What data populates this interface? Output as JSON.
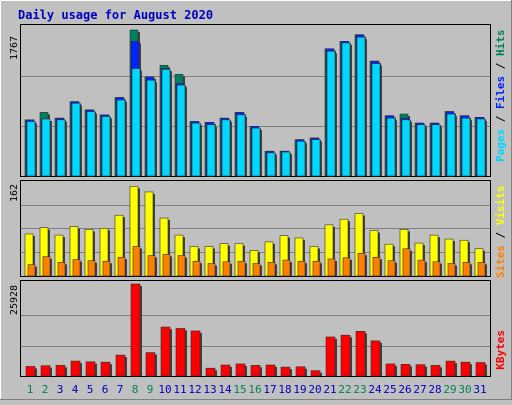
{
  "colors": {
    "background": "#c0c0c0",
    "plot_background": "#c0c0c0",
    "gridline": "#808080",
    "hits": "#00805c",
    "files": "#0024ff",
    "pages": "#00d8ff",
    "visits": "#ffff00",
    "sites": "#ff8000",
    "kbytes": "#ff0000",
    "title": "#0000c0",
    "weekend_label": "#00805c",
    "weekday_label": "#0000c0"
  },
  "chart_data": [
    {
      "type": "bar",
      "title": "Daily usage for August 2020",
      "ylabel": "Pages / Files / Hits",
      "ylim": [
        0,
        1767
      ],
      "y_tick_labels": [
        "1767"
      ],
      "grid": true,
      "categories": [
        "1",
        "2",
        "3",
        "4",
        "5",
        "6",
        "7",
        "8",
        "9",
        "10",
        "11",
        "12",
        "13",
        "14",
        "15",
        "16",
        "17",
        "18",
        "19",
        "20",
        "21",
        "22",
        "23",
        "24",
        "25",
        "26",
        "27",
        "28",
        "29",
        "30",
        "31"
      ],
      "series": [
        {
          "name": "Hits",
          "values": [
            680,
            770,
            700,
            900,
            800,
            740,
            950,
            1767,
            1200,
            1340,
            1230,
            660,
            650,
            700,
            770,
            600,
            300,
            300,
            440,
            460,
            1540,
            1630,
            1710,
            1390,
            730,
            750,
            640,
            640,
            780,
            730,
            710
          ]
        },
        {
          "name": "Files",
          "values": [
            680,
            690,
            700,
            900,
            800,
            740,
            950,
            1630,
            1200,
            1300,
            1120,
            660,
            650,
            700,
            770,
            600,
            300,
            300,
            440,
            460,
            1540,
            1630,
            1710,
            1390,
            730,
            700,
            640,
            640,
            780,
            730,
            710
          ]
        },
        {
          "name": "Pages",
          "values": [
            660,
            690,
            680,
            880,
            780,
            720,
            920,
            1300,
            1160,
            1290,
            1100,
            640,
            620,
            680,
            740,
            580,
            280,
            290,
            420,
            440,
            1510,
            1610,
            1680,
            1360,
            700,
            680,
            620,
            620,
            750,
            700,
            690
          ]
        }
      ]
    },
    {
      "type": "bar",
      "ylabel": "Sites / Visits",
      "ylim": [
        0,
        162
      ],
      "y_tick_labels": [
        "162"
      ],
      "grid": true,
      "categories": [
        "1",
        "2",
        "3",
        "4",
        "5",
        "6",
        "7",
        "8",
        "9",
        "10",
        "11",
        "12",
        "13",
        "14",
        "15",
        "16",
        "17",
        "18",
        "19",
        "20",
        "21",
        "22",
        "23",
        "24",
        "25",
        "26",
        "27",
        "28",
        "29",
        "30",
        "31"
      ],
      "series": [
        {
          "name": "Visits",
          "values": [
            74,
            85,
            72,
            87,
            82,
            84,
            107,
            158,
            148,
            102,
            72,
            52,
            52,
            57,
            57,
            45,
            60,
            71,
            67,
            52,
            90,
            100,
            110,
            80,
            56,
            82,
            58,
            72,
            65,
            63,
            48
          ]
        },
        {
          "name": "Sites",
          "values": [
            20,
            34,
            24,
            29,
            27,
            26,
            33,
            52,
            36,
            38,
            36,
            26,
            22,
            25,
            26,
            22,
            24,
            28,
            26,
            26,
            30,
            32,
            40,
            33,
            27,
            48,
            28,
            25,
            22,
            24,
            24
          ]
        }
      ]
    },
    {
      "type": "bar",
      "ylabel": "KBytes",
      "ylim": [
        0,
        25928
      ],
      "y_tick_labels": [
        "25928"
      ],
      "grid": true,
      "categories": [
        "1",
        "2",
        "3",
        "4",
        "5",
        "6",
        "7",
        "8",
        "9",
        "10",
        "11",
        "12",
        "13",
        "14",
        "15",
        "16",
        "17",
        "18",
        "19",
        "20",
        "21",
        "22",
        "23",
        "24",
        "25",
        "26",
        "27",
        "28",
        "29",
        "30",
        "31"
      ],
      "series": [
        {
          "name": "KBytes",
          "values": [
            2700,
            2900,
            3000,
            4200,
            4000,
            3900,
            5900,
            25928,
            6600,
            13800,
            13400,
            12700,
            2200,
            3100,
            3400,
            3000,
            3100,
            2500,
            2600,
            1500,
            11000,
            11500,
            12600,
            9900,
            3400,
            3300,
            3200,
            3000,
            4200,
            3900,
            3800
          ]
        }
      ]
    }
  ],
  "weekend_days": [
    "1",
    "2",
    "8",
    "9",
    "15",
    "16",
    "22",
    "23",
    "29",
    "30"
  ]
}
